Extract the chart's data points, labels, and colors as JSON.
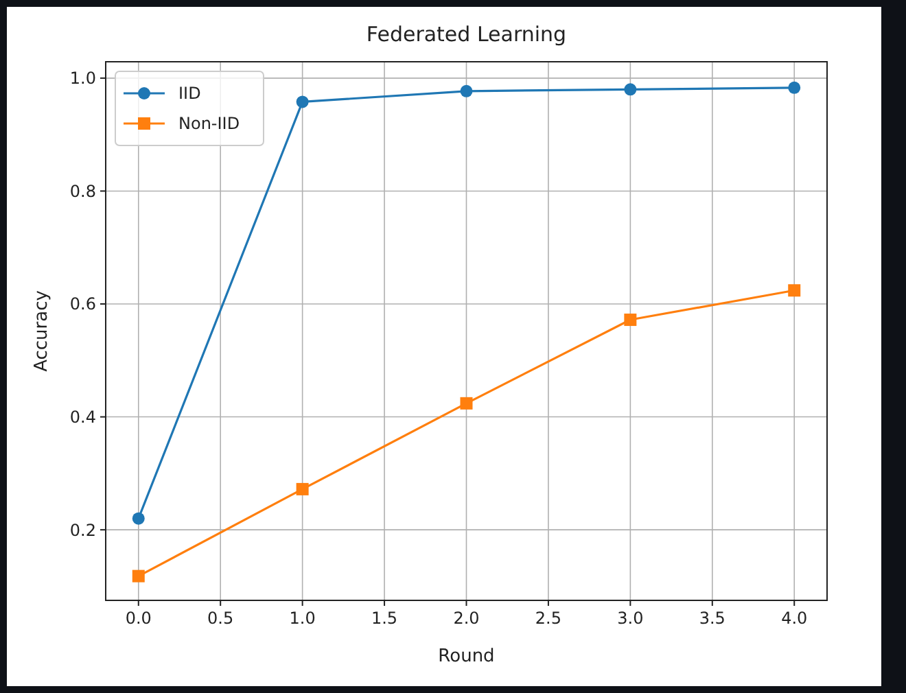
{
  "chart_data": {
    "type": "line",
    "title": "Federated Learning",
    "xlabel": "Round",
    "ylabel": "Accuracy",
    "x": [
      0,
      1,
      2,
      3,
      4
    ],
    "series": [
      {
        "name": "IID",
        "color": "#1f77b4",
        "marker": "circle",
        "values": [
          0.22,
          0.958,
          0.977,
          0.98,
          0.983
        ]
      },
      {
        "name": "Non-IID",
        "color": "#ff7f0e",
        "marker": "square",
        "values": [
          0.118,
          0.272,
          0.424,
          0.572,
          0.624
        ]
      }
    ],
    "xlim": [
      -0.2,
      4.2
    ],
    "xticks": [
      {
        "value": 0,
        "label": "0.0"
      },
      {
        "value": 0.5,
        "label": "0.5"
      },
      {
        "value": 1,
        "label": "1.0"
      },
      {
        "value": 1.5,
        "label": "1.5"
      },
      {
        "value": 2,
        "label": "2.0"
      },
      {
        "value": 2.5,
        "label": "2.5"
      },
      {
        "value": 3,
        "label": "3.0"
      },
      {
        "value": 3.5,
        "label": "3.5"
      },
      {
        "value": 4,
        "label": "4.0"
      }
    ],
    "ylim": [
      0.075,
      1.029
    ],
    "yticks": [
      0.2,
      0.4,
      0.6,
      0.8,
      {
        "value": 1,
        "label": "1.0"
      }
    ],
    "grid": true,
    "legend": "top left",
    "line_style": "solid"
  }
}
